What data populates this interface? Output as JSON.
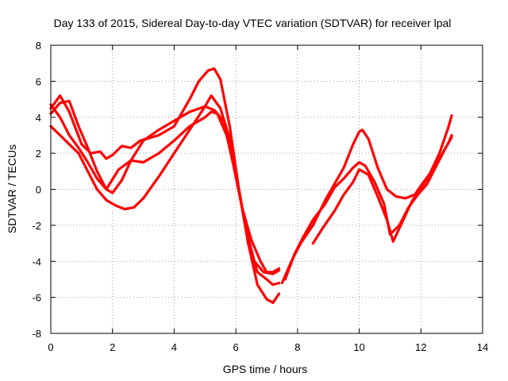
{
  "chart_data": {
    "type": "scatter",
    "title": "Day 133 of 2015, Sidereal Day-to-day VTEC variation (SDTVAR) for receiver lpal",
    "xlabel": "GPS time / hours",
    "ylabel": "SDTVAR / TECUs",
    "xlim": [
      0,
      14
    ],
    "ylim": [
      -8,
      8
    ],
    "xticks": [
      0,
      2,
      4,
      6,
      8,
      10,
      12,
      14
    ],
    "yticks": [
      -8,
      -6,
      -4,
      -2,
      0,
      2,
      4,
      6,
      8
    ],
    "grid": true,
    "marker": "plus",
    "color": "#ff0000",
    "series": [
      {
        "x": [
          0,
          0.3,
          0.6,
          0.9,
          1.2,
          1.5,
          1.8,
          2.0,
          2.3,
          2.6,
          3.0,
          3.5,
          4.0,
          4.5,
          5.0,
          5.3,
          5.6,
          5.9,
          6.2,
          6.5,
          6.8,
          7.0,
          7.2,
          7.4
        ],
        "y": [
          4.2,
          4.8,
          4.9,
          3.5,
          2.3,
          1.0,
          0.0,
          -0.2,
          0.5,
          1.6,
          2.7,
          3.3,
          3.8,
          4.3,
          4.6,
          4.4,
          3.8,
          1.5,
          -1.0,
          -2.8,
          -4.0,
          -4.6,
          -4.6,
          -4.4
        ]
      },
      {
        "x": [
          0,
          0.3,
          0.6,
          0.9,
          1.2,
          1.5,
          1.8,
          2.1,
          2.4,
          2.7,
          3.0,
          3.5,
          4.0,
          4.5,
          5.0,
          5.2,
          5.5,
          5.8,
          6.1,
          6.4,
          6.7,
          7.0,
          7.2,
          7.4
        ],
        "y": [
          3.5,
          3.0,
          2.5,
          2.0,
          1.0,
          0.0,
          -0.6,
          -0.9,
          -1.1,
          -1.0,
          -0.5,
          0.7,
          2.0,
          3.3,
          4.6,
          5.2,
          4.5,
          2.8,
          0.0,
          -3.0,
          -4.6,
          -5.0,
          -5.3,
          -5.2
        ]
      },
      {
        "x": [
          0,
          0.3,
          0.6,
          1.0,
          1.3,
          1.6,
          1.8,
          2.0,
          2.3,
          2.6,
          2.9,
          3.5,
          4.0,
          4.5,
          4.8,
          5.1,
          5.3,
          5.5,
          5.8,
          6.1,
          6.4,
          6.7,
          7.0,
          7.2,
          7.4
        ],
        "y": [
          4.5,
          5.2,
          4.3,
          2.5,
          2.0,
          2.1,
          1.7,
          1.9,
          2.4,
          2.3,
          2.7,
          3.0,
          3.5,
          5.0,
          6.0,
          6.6,
          6.7,
          6.1,
          3.5,
          0.0,
          -3.0,
          -5.3,
          -6.1,
          -6.3,
          -5.8
        ]
      },
      {
        "x": [
          0,
          0.3,
          0.6,
          0.9,
          1.2,
          1.5,
          1.8,
          2.2,
          2.6,
          3.0,
          3.5,
          4.0,
          4.5,
          5.0,
          5.2,
          5.4,
          5.7,
          6.0,
          6.3,
          6.6,
          6.9,
          7.2,
          7.4
        ],
        "y": [
          4.7,
          4.0,
          3.0,
          2.3,
          1.5,
          0.6,
          0.0,
          1.1,
          1.6,
          1.5,
          2.0,
          2.7,
          3.5,
          4.0,
          4.3,
          4.2,
          3.0,
          1.0,
          -2.0,
          -4.0,
          -4.6,
          -4.7,
          -4.5
        ]
      },
      {
        "x": [
          7.5,
          7.8,
          8.1,
          8.5,
          8.9,
          9.2,
          9.5,
          9.8,
          10.0,
          10.1,
          10.3,
          10.6,
          10.9,
          11.2,
          11.5,
          11.8,
          12.0,
          12.3,
          12.6,
          12.9,
          13.0
        ],
        "y": [
          -5.2,
          -4.0,
          -3.0,
          -2.0,
          -0.6,
          0.3,
          1.2,
          2.5,
          3.2,
          3.3,
          2.8,
          1.2,
          0.0,
          -0.4,
          -0.5,
          -0.3,
          0.2,
          0.9,
          2.0,
          3.5,
          4.1
        ]
      },
      {
        "x": [
          7.6,
          7.9,
          8.2,
          8.5,
          8.9,
          9.2,
          9.5,
          9.8,
          10.0,
          10.2,
          10.5,
          10.8,
          11.0,
          11.3,
          11.6,
          11.9,
          12.2,
          12.5,
          12.8,
          13.0
        ],
        "y": [
          -5.0,
          -3.6,
          -2.6,
          -1.7,
          -0.8,
          0.1,
          0.6,
          1.2,
          1.5,
          1.3,
          0.4,
          -0.8,
          -2.5,
          -2.0,
          -1.0,
          -0.3,
          0.3,
          1.3,
          2.3,
          2.9
        ]
      },
      {
        "x": [
          8.5,
          8.8,
          9.2,
          9.5,
          9.8,
          10.0,
          10.3,
          10.6,
          10.9,
          11.1,
          11.4,
          11.7,
          12.0,
          12.3,
          12.6,
          12.9,
          13.0
        ],
        "y": [
          -3.0,
          -2.2,
          -1.2,
          -0.3,
          0.4,
          1.1,
          0.8,
          -0.4,
          -1.7,
          -2.9,
          -1.8,
          -0.7,
          0.1,
          0.8,
          1.7,
          2.6,
          3.0
        ]
      }
    ]
  }
}
